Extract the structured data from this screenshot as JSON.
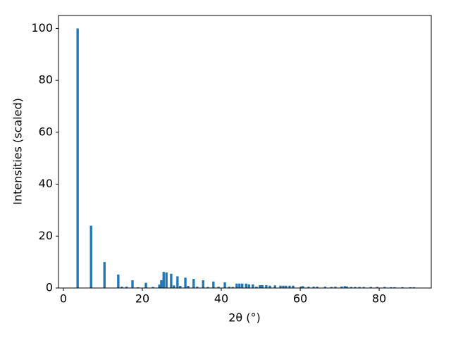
{
  "chart_data": {
    "type": "bar",
    "x_label": "2θ (°)",
    "y_label": "Intensities (scaled)",
    "color": "#1f77b4",
    "x": [
      3.6,
      7.0,
      10.4,
      13.9,
      14.8,
      16.0,
      17.5,
      18.9,
      20.9,
      22.7,
      24.3,
      24.8,
      25.4,
      26.1,
      27.3,
      28.0,
      28.9,
      29.6,
      30.9,
      31.6,
      33.0,
      33.9,
      35.4,
      36.6,
      38.0,
      39.3,
      40.9,
      42.0,
      42.9,
      43.9,
      44.6,
      45.3,
      46.3,
      47.0,
      48.0,
      48.9,
      49.8,
      50.4,
      51.4,
      52.3,
      53.6,
      55.0,
      55.7,
      56.4,
      57.3,
      58.2,
      60.2,
      60.7,
      62.1,
      63.4,
      64.3,
      66.3,
      67.9,
      68.9,
      70.5,
      71.3,
      71.8,
      72.9,
      73.9,
      75.0,
      76.1,
      77.9,
      79.5,
      81.4,
      83.0,
      83.9,
      85.9,
      87.9,
      88.8
    ],
    "values": [
      100,
      24,
      10,
      5.2,
      0.5,
      0.5,
      3,
      0.3,
      2,
      0.4,
      1.3,
      3,
      6.2,
      6,
      5.5,
      1,
      4.5,
      0.8,
      4,
      0.8,
      3.5,
      0.5,
      3,
      0.4,
      2.5,
      0.5,
      2.2,
      0.5,
      0.4,
      1.7,
      1.7,
      1.7,
      1.7,
      1.4,
      1.4,
      0.5,
      1.1,
      1.1,
      1.1,
      0.9,
      1,
      0.9,
      0.9,
      0.9,
      0.9,
      0.9,
      0.6,
      0.7,
      0.5,
      0.5,
      0.5,
      0.5,
      0.4,
      0.5,
      0.6,
      0.7,
      0.6,
      0.4,
      0.4,
      0.4,
      0.4,
      0.4,
      0.4,
      0.4,
      0.3,
      0.3,
      0.3,
      0.3,
      0.3
    ],
    "xlim": [
      -1.25,
      93.2
    ],
    "ylim": [
      0,
      105
    ],
    "xticks": [
      0,
      20,
      40,
      60,
      80
    ],
    "yticks": [
      0,
      20,
      40,
      60,
      80,
      100
    ]
  }
}
